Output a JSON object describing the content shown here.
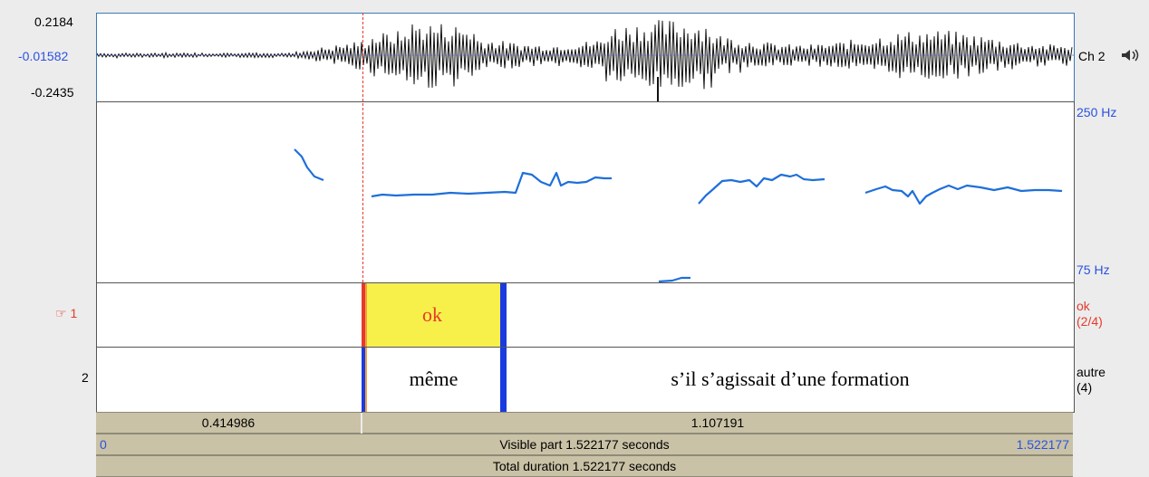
{
  "waveform": {
    "y_top": "0.2184",
    "y_mid": "-0.01582",
    "y_bottom": "-0.2435",
    "channel_label": "Ch 2",
    "speaker_icon": "speaker-icon"
  },
  "pitch": {
    "top_label": "250 Hz",
    "bottom_label": "75 Hz",
    "line_color": "#1e6fd9"
  },
  "tiers": [
    {
      "marker": "☞",
      "number": "1",
      "intervals": [
        "",
        "ok",
        ""
      ],
      "right_label_line1": "ok",
      "right_label_line2": "(2/4)"
    },
    {
      "number": "2",
      "intervals": [
        "",
        "même",
        "s’il s’agissait d’une formation"
      ],
      "right_label_line1": "autre",
      "right_label_line2": "(4)"
    }
  ],
  "selection_bar": {
    "left": "0.414986",
    "right": "1.107191"
  },
  "visible_bar": {
    "start": "0",
    "text": "Visible part 1.522177 seconds",
    "end": "1.522177"
  },
  "total_bar": {
    "text": "Total duration 1.522177 seconds"
  },
  "colors": {
    "selected_interval": "#f7f04a",
    "boundary_blue": "#1a3be0",
    "boundary_red": "#e53a2e",
    "cursor": "#e53a2e",
    "time_bar": "#c9c2a6"
  }
}
